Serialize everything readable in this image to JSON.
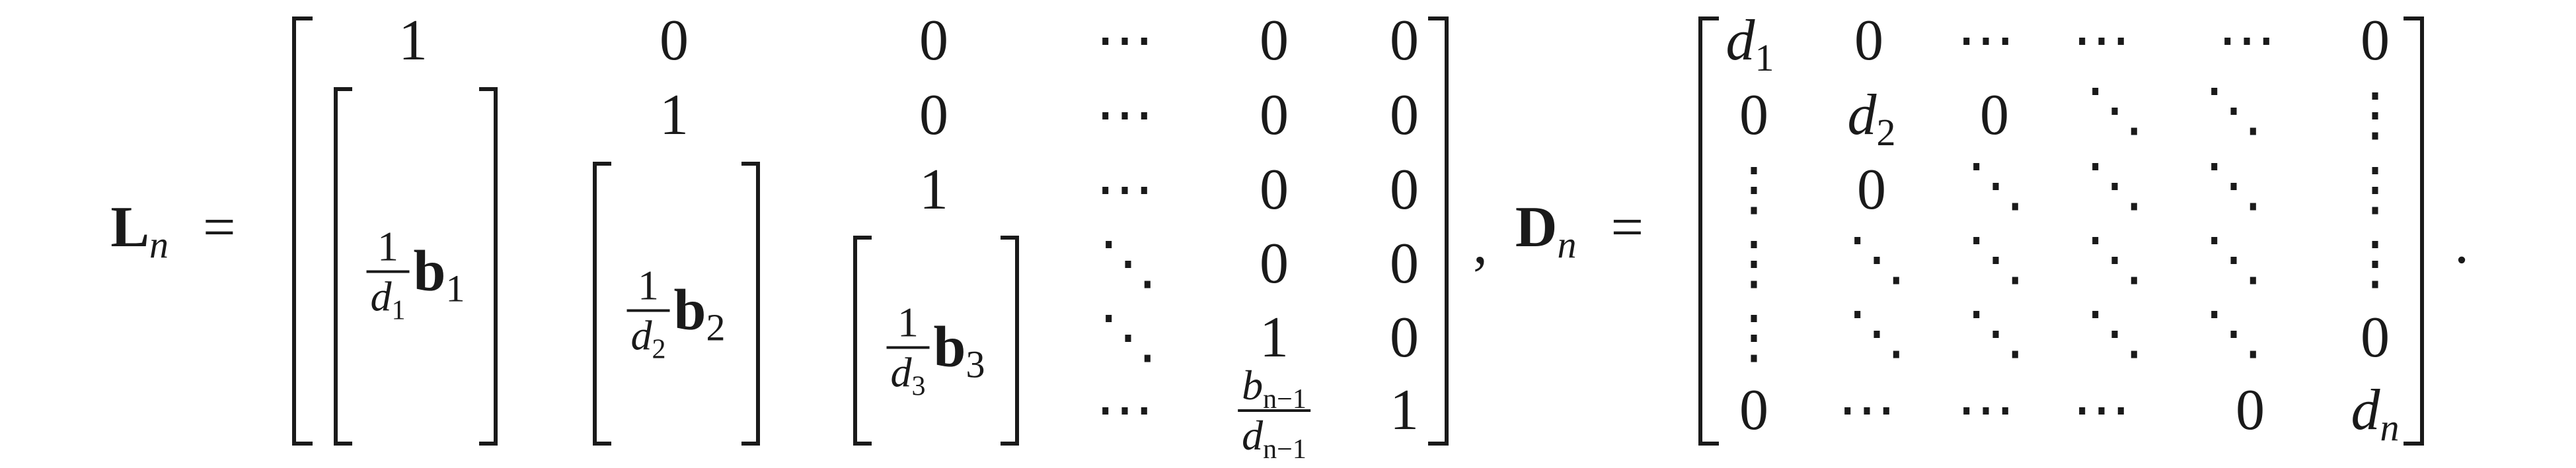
{
  "L": {
    "symbol": "L",
    "sub": "n",
    "equals": "=",
    "row_entries": [
      [
        "1",
        "0",
        "0",
        "⋯",
        "0",
        "0"
      ],
      [
        "1",
        "0",
        "⋯",
        "0",
        "0"
      ],
      [
        "1",
        "⋯",
        "0",
        "0"
      ],
      [
        "⋱",
        "0",
        "0"
      ],
      [
        "⋱",
        "1",
        "0"
      ],
      [
        "⋯",
        "1"
      ]
    ],
    "blocks": [
      {
        "num": "1",
        "den_letter": "d",
        "den_sub": "1",
        "vec": "b",
        "vec_sub": "1"
      },
      {
        "num": "1",
        "den_letter": "d",
        "den_sub": "2",
        "vec": "b",
        "vec_sub": "2"
      },
      {
        "num": "1",
        "den_letter": "d",
        "den_sub": "3",
        "vec": "b",
        "vec_sub": "3"
      }
    ],
    "last_frac": {
      "num_letter": "b",
      "num_sub": "n−1",
      "den_letter": "d",
      "den_sub": "n−1"
    }
  },
  "comma": ",",
  "D": {
    "symbol": "D",
    "sub": "n",
    "equals": "=",
    "d_letter": "d",
    "rows": [
      [
        "d1",
        "0",
        "⋯",
        "⋯",
        "⋯",
        "0"
      ],
      [
        "0",
        "d2",
        "0",
        "⋱",
        "⋱",
        "⋮"
      ],
      [
        "⋮",
        "0",
        "⋱",
        "⋱",
        "⋱",
        "⋮"
      ],
      [
        "⋮",
        "⋱",
        "⋱",
        "⋱",
        "⋱",
        "⋮"
      ],
      [
        "⋮",
        "⋱",
        "⋱",
        "⋱",
        "⋱",
        "0"
      ],
      [
        "0",
        "⋯",
        "⋯",
        "⋯",
        "0",
        "dn"
      ]
    ],
    "subs": {
      "d1": "1",
      "d2": "2",
      "dn": "n"
    }
  },
  "period": "."
}
